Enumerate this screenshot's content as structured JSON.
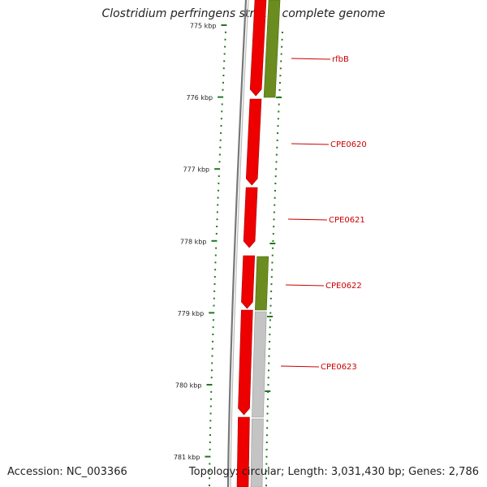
{
  "title": "Clostridium perfringens str. 13, complete genome",
  "accession_text": "Accession: NC_003366",
  "topology_text": "Topology: circular; Length: 3,031,430 bp; Genes: 2,786",
  "ticks": [
    {
      "label": "775 kbp"
    },
    {
      "label": "776 kbp"
    },
    {
      "label": "777 kbp"
    },
    {
      "label": "778 kbp"
    },
    {
      "label": "779 kbp"
    },
    {
      "label": "780 kbp"
    },
    {
      "label": "781 kbp"
    }
  ],
  "gene_labels": [
    "rfbB",
    "CPE0620",
    "CPE0621",
    "CPE0622",
    "CPE0623"
  ],
  "colors": {
    "forward_gene": "#ee0000",
    "reverse_gene_green": "#6b8c1f",
    "reverse_gene_gray": "#c4c4c4",
    "tick": "#227722",
    "label": "#cc0000",
    "backbone": "#777777"
  }
}
